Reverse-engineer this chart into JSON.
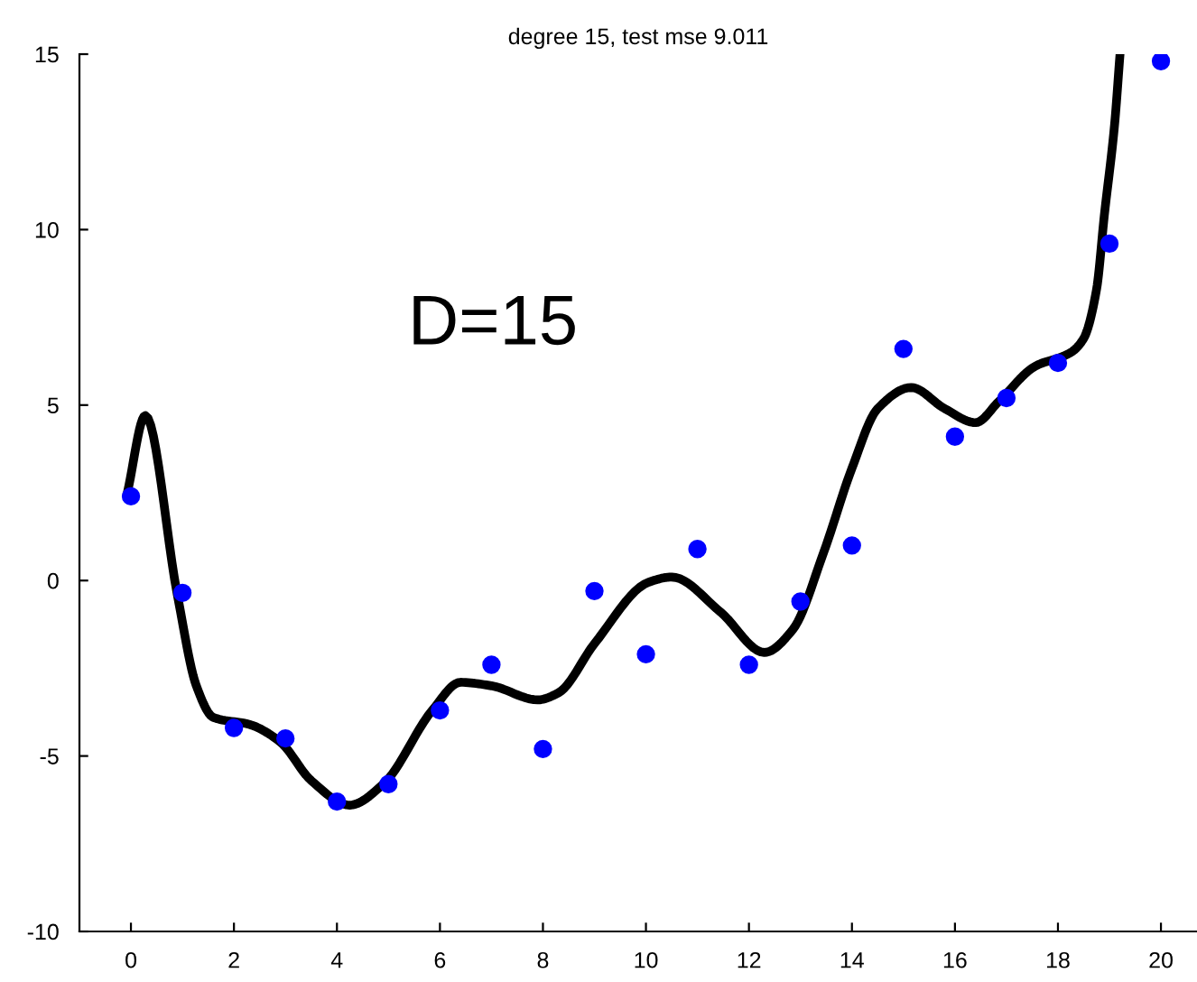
{
  "chart_data": {
    "type": "scatter",
    "title": "degree 15, test mse 9.011",
    "annotations": [
      "D=15"
    ],
    "xlim": [
      -1,
      20.7
    ],
    "ylim": [
      -10,
      15
    ],
    "xticks": [
      0,
      2,
      4,
      6,
      8,
      10,
      12,
      14,
      16,
      18,
      20
    ],
    "yticks": [
      -10,
      -5,
      0,
      5,
      10,
      15
    ],
    "grid": false,
    "series": [
      {
        "color": "#0000ff",
        "marker": "circle",
        "x": [
          0,
          1,
          2,
          3,
          4,
          5,
          6,
          7,
          8,
          9,
          10,
          11,
          12,
          13,
          14,
          15,
          16,
          17,
          18,
          19,
          20
        ],
        "values": [
          2.4,
          -0.35,
          -4.2,
          -4.5,
          -6.3,
          -5.8,
          -3.7,
          -2.4,
          -4.8,
          -0.3,
          -2.1,
          0.9,
          -2.4,
          -0.6,
          1.0,
          6.6,
          4.1,
          5.2,
          6.2,
          9.6,
          14.8
        ]
      },
      {
        "type": "line",
        "color": "#000000",
        "line_style": "solid",
        "marker": "none",
        "x": [
          -0.07,
          0.28,
          0.9,
          1.27,
          1.6,
          2.3,
          2.9,
          3.5,
          4.25,
          4.9,
          5.85,
          6.4,
          7.0,
          7.9,
          8.3,
          9.0,
          10.05,
          10.5,
          11.45,
          12.3,
          12.85,
          13.45,
          14.0,
          14.5,
          15.15,
          15.8,
          16.4,
          16.85,
          17.55,
          18.25,
          18.5,
          18.75,
          18.9,
          19.1,
          19.2
        ],
        "values": [
          2.5,
          4.7,
          -0.4,
          -3.0,
          -3.9,
          -4.1,
          -4.6,
          -5.7,
          -6.4,
          -5.8,
          -3.7,
          -2.9,
          -3.0,
          -3.4,
          -3.2,
          -1.8,
          -0.05,
          0.1,
          -0.9,
          -2.05,
          -1.4,
          0.8,
          3.2,
          4.9,
          5.5,
          4.9,
          4.5,
          5.1,
          6.1,
          6.5,
          6.9,
          8.3,
          10.4,
          13.0,
          14.9
        ]
      }
    ]
  }
}
